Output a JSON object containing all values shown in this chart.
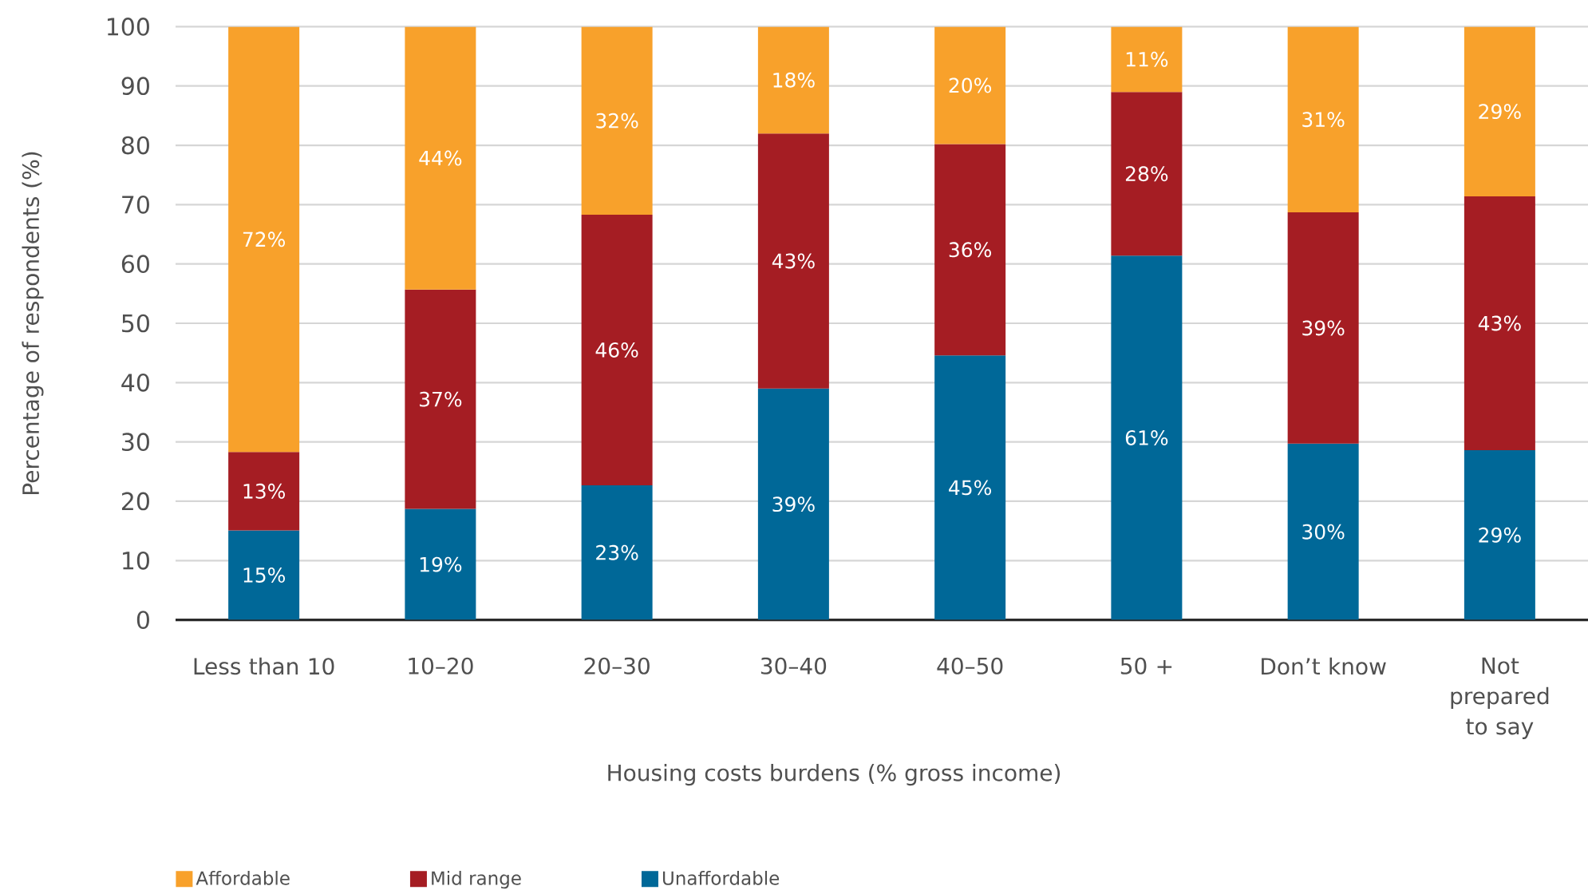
{
  "chart_data": {
    "type": "bar",
    "stacked": true,
    "categories": [
      "Less than 10",
      "10–20",
      "20–30",
      "30–40",
      "40–50",
      "50 +",
      "Don’t know",
      "Not prepared to say"
    ],
    "series": [
      {
        "name": "Unaffordable",
        "color": "#006898",
        "values": [
          15.1,
          18.7,
          22.7,
          39.0,
          44.6,
          61.4,
          29.7,
          28.6
        ],
        "value_labels": [
          "15%",
          "19%",
          "23%",
          "39%",
          "45%",
          "61%",
          "30%",
          "29%"
        ]
      },
      {
        "name": "Mid range",
        "color": "#a51d23",
        "values": [
          13.2,
          37.0,
          45.6,
          43.0,
          35.6,
          27.6,
          39.0,
          42.8
        ],
        "value_labels": [
          "13%",
          "37%",
          "46%",
          "43%",
          "36%",
          "28%",
          "39%",
          "43%"
        ]
      },
      {
        "name": "Affordable",
        "color": "#f8a12b",
        "values": [
          71.7,
          44.3,
          31.7,
          18.0,
          19.8,
          11.0,
          31.3,
          28.6
        ],
        "value_labels": [
          "72%",
          "44%",
          "32%",
          "18%",
          "20%",
          "11%",
          "31%",
          "29%"
        ]
      }
    ],
    "xlabel": "Housing costs burdens (% gross income)",
    "ylabel": "Percentage of respondents (%)",
    "ylim": [
      0,
      100
    ],
    "yticks": [
      0,
      10,
      20,
      30,
      40,
      50,
      60,
      70,
      80,
      90,
      100
    ],
    "grid": "y",
    "legend": "bottom left"
  }
}
